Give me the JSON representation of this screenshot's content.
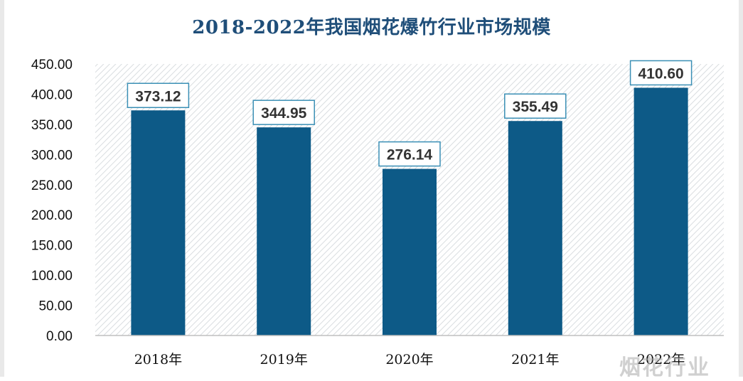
{
  "chart_data": {
    "type": "bar",
    "title": "2018-2022年我国烟花爆竹行业市场规模",
    "categories": [
      "2018年",
      "2019年",
      "2020年",
      "2021年",
      "2022年"
    ],
    "values": [
      373.12,
      344.95,
      276.14,
      355.49,
      410.6
    ],
    "value_labels": [
      "373.12",
      "344.95",
      "276.14",
      "355.49",
      "410.60"
    ],
    "ylim": [
      0,
      450
    ],
    "yticks": [
      "0.00",
      "50.00",
      "100.00",
      "150.00",
      "200.00",
      "250.00",
      "300.00",
      "350.00",
      "400.00",
      "450.00"
    ],
    "ytick_values": [
      0,
      50,
      100,
      150,
      200,
      250,
      300,
      350,
      400,
      450
    ],
    "xlabel": "",
    "ylabel": "",
    "bar_color": "#0d5a87",
    "label_border_color": "#3a8fb5"
  },
  "watermark": "烟花行业"
}
